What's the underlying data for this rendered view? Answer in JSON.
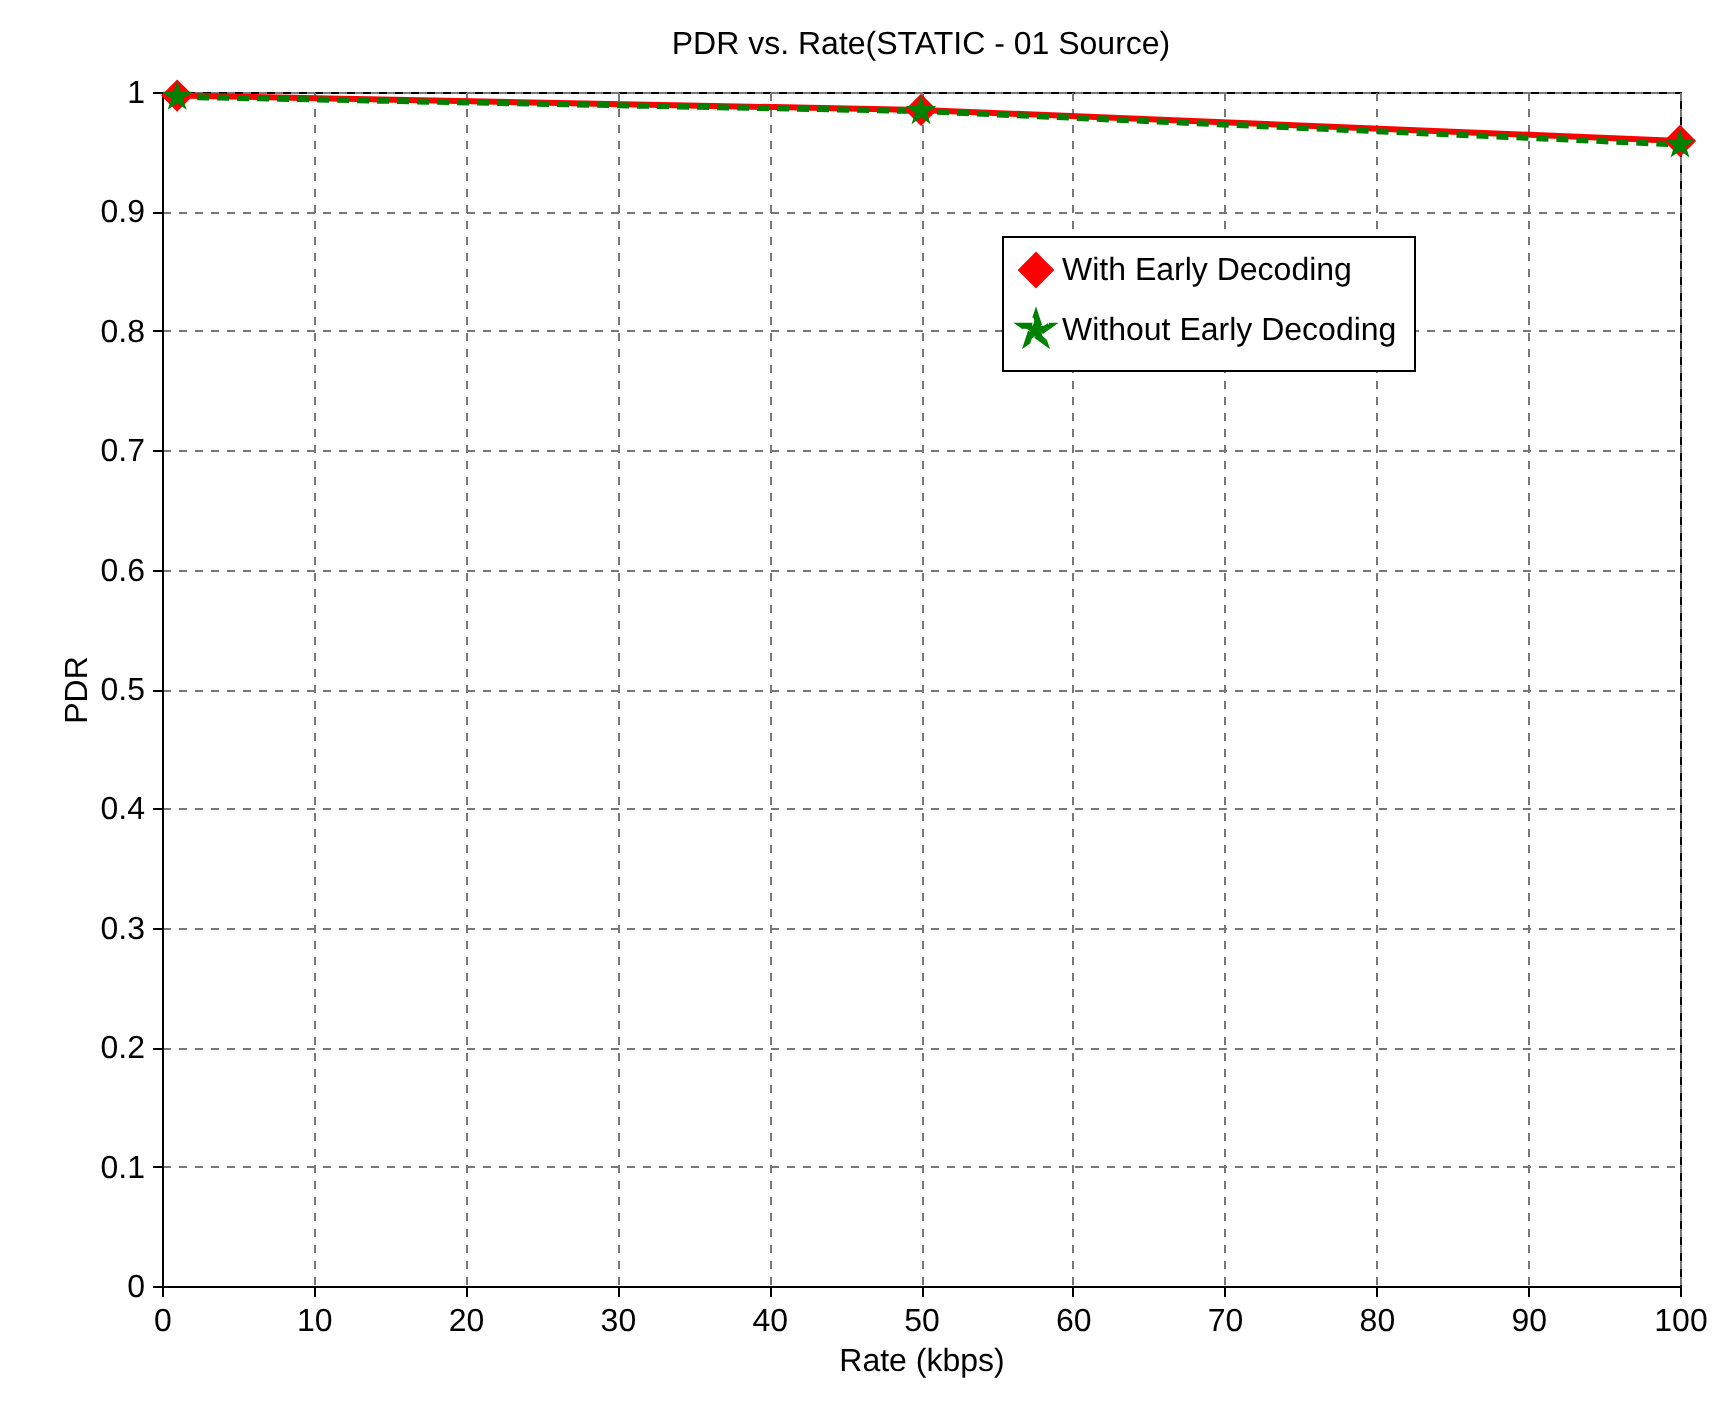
{
  "chart_data": {
    "type": "line",
    "title": "PDR vs. Rate(STATIC - 01 Source)",
    "xlabel": "Rate (kbps)",
    "ylabel": "PDR",
    "x": [
      1,
      50,
      100
    ],
    "series": [
      {
        "name": "With Early Decoding",
        "color": "#ff0000",
        "values": [
          0.997,
          0.985,
          0.959
        ],
        "marker": "diamond",
        "line_style": "solid"
      },
      {
        "name": "Without Early Decoding",
        "color": "#008000",
        "values": [
          0.996,
          0.984,
          0.956
        ],
        "marker": "star",
        "line_style": "dashed"
      }
    ],
    "xlim": [
      0,
      100
    ],
    "xticks": [
      0,
      10,
      20,
      30,
      40,
      50,
      60,
      70,
      80,
      90,
      100
    ],
    "ylim": [
      0,
      1
    ],
    "yticks": [
      0,
      0.1,
      0.2,
      0.3,
      0.4,
      0.5,
      0.6,
      0.7,
      0.8,
      0.9,
      1
    ],
    "grid": true,
    "legend": "top right"
  }
}
